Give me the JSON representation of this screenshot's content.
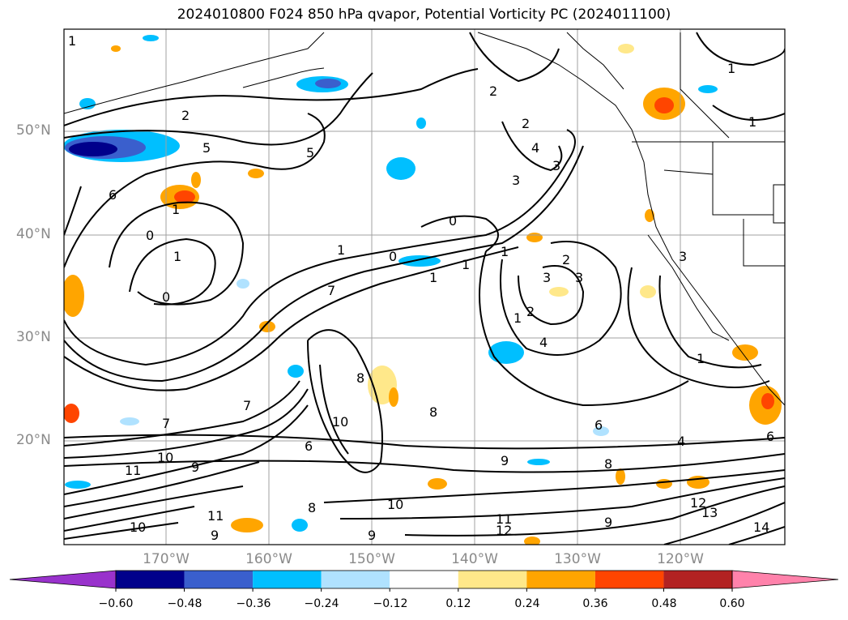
{
  "title": "2024010800 F024 850 hPa qvapor, Potential Vorticity PC (2024011100)",
  "map": {
    "lat_labels": [
      "50°N",
      "40°N",
      "30°N",
      "20°N"
    ],
    "lon_labels": [
      "170°W",
      "160°W",
      "150°W",
      "140°W",
      "130°W",
      "120°W"
    ],
    "contour_labels": [
      "1",
      "2",
      "5",
      "5",
      "6",
      "1",
      "0",
      "1",
      "0",
      "2",
      "2",
      "4",
      "3",
      "3",
      "0",
      "1",
      "0",
      "1",
      "1",
      "2",
      "3",
      "3",
      "2",
      "1",
      "1",
      "4",
      "1",
      "8",
      "8",
      "10",
      "7",
      "7",
      "7",
      "6",
      "9",
      "9",
      "11",
      "10",
      "11",
      "9",
      "8",
      "8",
      "9",
      "10",
      "12",
      "12",
      "13",
      "14",
      "11",
      "10",
      "9",
      "1",
      "1",
      "4",
      "6",
      "6",
      "3"
    ]
  },
  "colorbar": {
    "ticks": [
      "−0.60",
      "−0.48",
      "−0.36",
      "−0.24",
      "−0.12",
      "0.12",
      "0.24",
      "0.36",
      "0.48",
      "0.60"
    ],
    "colors": [
      "#9932cc",
      "#00008b",
      "#3a5fcd",
      "#00bfff",
      "#b0e2ff",
      "#ffffff",
      "#ffe88a",
      "#ffa500",
      "#ff4500",
      "#b22222",
      "#ff82ab"
    ]
  }
}
